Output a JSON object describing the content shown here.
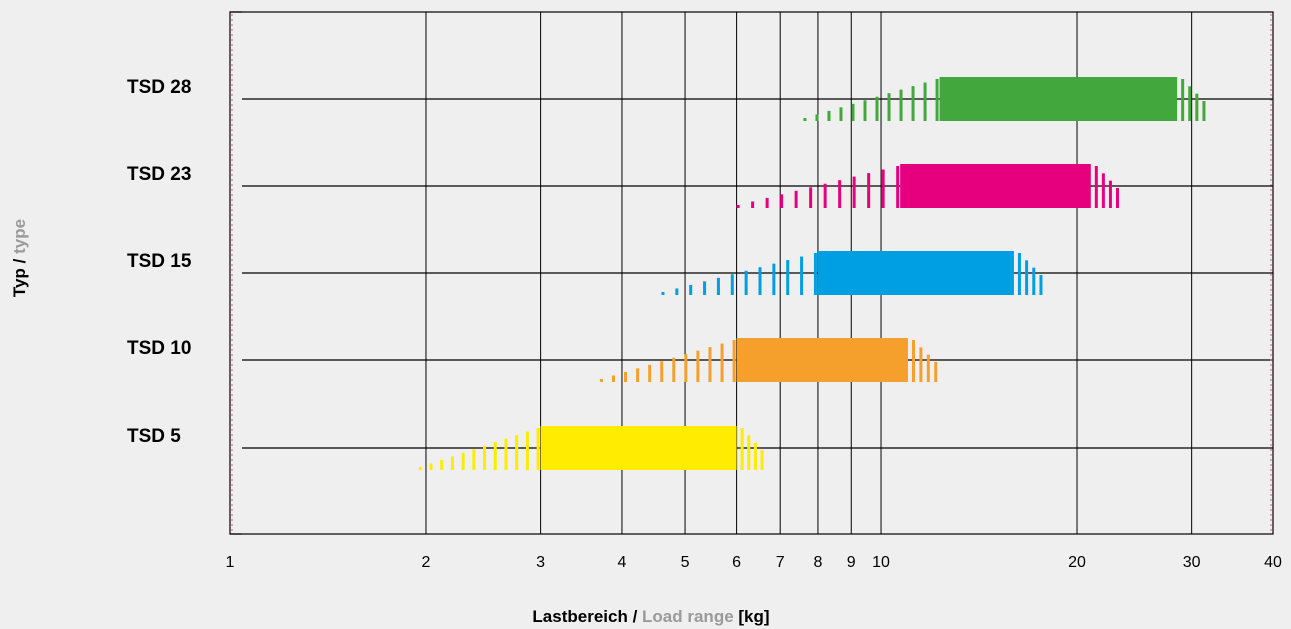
{
  "chart_data": {
    "type": "bar",
    "subtype": "horizontal-floating-range",
    "xscale": "log",
    "xlim": [
      1,
      40
    ],
    "xticks": [
      {
        "value": 1,
        "label": "1"
      },
      {
        "value": 2,
        "label": "2"
      },
      {
        "value": 3,
        "label": "3"
      },
      {
        "value": 4,
        "label": "4"
      },
      {
        "value": 5,
        "label": "5"
      },
      {
        "value": 6,
        "label": "6"
      },
      {
        "value": 7,
        "label": "7"
      },
      {
        "value": 8,
        "label": "8"
      },
      {
        "value": 9,
        "label": "9"
      },
      {
        "value": 10,
        "label": "10"
      },
      {
        "value": 20,
        "label": "20"
      },
      {
        "value": 30,
        "label": "30"
      },
      {
        "value": 40,
        "label": "40"
      }
    ],
    "xlabel": {
      "part1": "Lastbereich /",
      "part2": "Load range",
      "part3": "[kg]"
    },
    "ylabel": {
      "part1": "Typ /",
      "part2": "type"
    },
    "grid": true,
    "categories": [
      "TSD 28",
      "TSD 23",
      "TSD 15",
      "TSD 10",
      "TSD 5"
    ],
    "series": [
      {
        "name": "TSD 28",
        "color": "#42a73c",
        "fade_in_start": 7.6,
        "solid_start": 12.3,
        "solid_end": 28.5,
        "fade_out_end": 31.5
      },
      {
        "name": "TSD 23",
        "color": "#e6007e",
        "fade_in_start": 6.0,
        "solid_start": 10.7,
        "solid_end": 21.0,
        "fade_out_end": 23.2
      },
      {
        "name": "TSD 15",
        "color": "#009fe3",
        "fade_in_start": 4.6,
        "solid_start": 8.0,
        "solid_end": 16.0,
        "fade_out_end": 17.7
      },
      {
        "name": "TSD 10",
        "color": "#f5a02c",
        "fade_in_start": 3.7,
        "solid_start": 6.0,
        "solid_end": 11.0,
        "fade_out_end": 12.2
      },
      {
        "name": "TSD 5",
        "color": "#ffec00",
        "fade_in_start": 1.95,
        "solid_start": 3.0,
        "solid_end": 6.0,
        "fade_out_end": 6.6
      }
    ]
  }
}
